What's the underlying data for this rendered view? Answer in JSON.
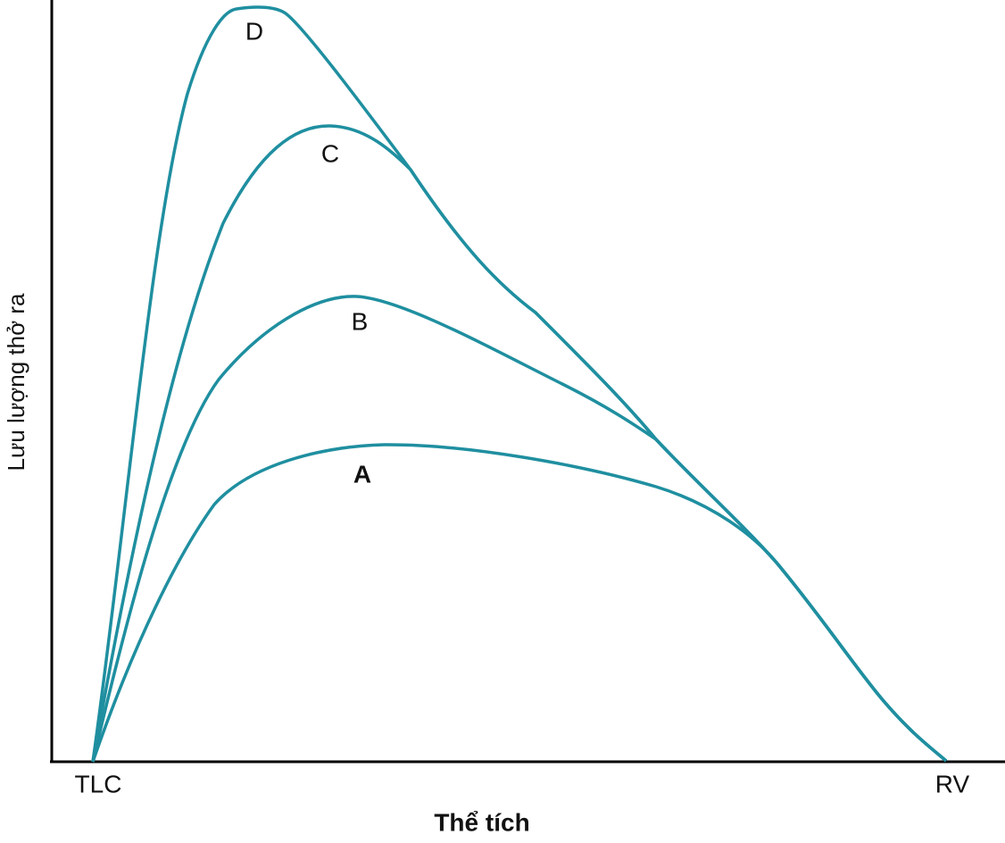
{
  "axes": {
    "y_label": "Lưu lượng thở ra",
    "x_label": "Thể tích",
    "x_start": "TLC",
    "x_end": "RV"
  },
  "curves": [
    {
      "label": "A"
    },
    {
      "label": "B"
    },
    {
      "label": "C"
    },
    {
      "label": "D"
    }
  ]
}
